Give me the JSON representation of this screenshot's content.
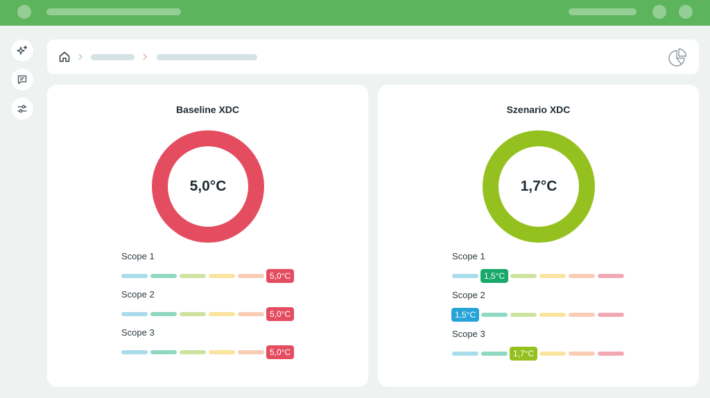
{
  "colors": {
    "topbar": "#5cb45c",
    "scale": [
      "#a9dcea",
      "#8fd9c3",
      "#cfe3a0",
      "#fbe3a0",
      "#f8cdb4",
      "#f2a8b3"
    ],
    "red": "#e44d60",
    "green": "#18a86a",
    "blue": "#27a3d7",
    "lime": "#94c11f"
  },
  "rail": {
    "icons": [
      "sparkle-icon",
      "comment-icon",
      "sliders-icon"
    ]
  },
  "breadcrumb": {
    "icon": "home-icon",
    "report_icon": "pie-chart-icon"
  },
  "baseline": {
    "title": "Baseline XDC",
    "value": "5,0°C",
    "ring_color": "#e44d60",
    "scopes": [
      {
        "label": "Scope 1",
        "badge": "5,0°C",
        "position": 5,
        "badge_color": "#e44d60"
      },
      {
        "label": "Scope 2",
        "badge": "5,0°C",
        "position": 5,
        "badge_color": "#e44d60"
      },
      {
        "label": "Scope 3",
        "badge": "5,0°C",
        "position": 5,
        "badge_color": "#e44d60"
      }
    ]
  },
  "scenario": {
    "title": "Szenario XDC",
    "value": "1,7°C",
    "ring_color": "#94c11f",
    "scopes": [
      {
        "label": "Scope 1",
        "badge": "1,5°C",
        "position": 1,
        "badge_color": "#18a86a"
      },
      {
        "label": "Scope 2",
        "badge": "1,5°C",
        "position": 0,
        "badge_color": "#27a3d7"
      },
      {
        "label": "Scope 3",
        "badge": "1,7°C",
        "position": 2,
        "badge_color": "#94c11f"
      }
    ]
  }
}
